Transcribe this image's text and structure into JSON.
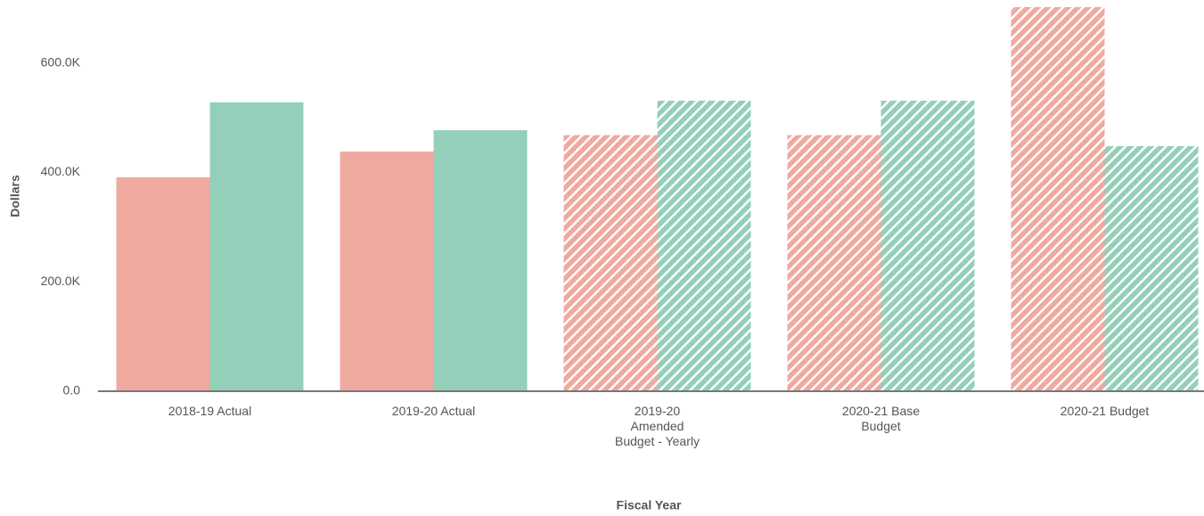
{
  "chart_data": {
    "type": "bar",
    "x_label": "Fiscal Year",
    "y_label": "Dollars",
    "categories": [
      "2018-19 Actual",
      "2019-20 Actual",
      "2019-20 Amended Budget - Yearly",
      "2020-21 Base Budget",
      "2020-21 Budget"
    ],
    "hatched": [
      false,
      false,
      true,
      true,
      true
    ],
    "series": [
      {
        "color": "#f0a99f",
        "values": [
          391000,
          438000,
          468000,
          468000,
          702000
        ]
      },
      {
        "color": "#94cfba",
        "values": [
          528000,
          477000,
          531000,
          531000,
          448000
        ]
      }
    ],
    "ylim": [
      0,
      715000
    ],
    "yticks": [
      {
        "value": 0,
        "label": "0.0"
      },
      {
        "value": 200000,
        "label": "200.0K"
      },
      {
        "value": 400000,
        "label": "400.0K"
      },
      {
        "value": 600000,
        "label": "600.0K"
      }
    ],
    "grid": false
  }
}
